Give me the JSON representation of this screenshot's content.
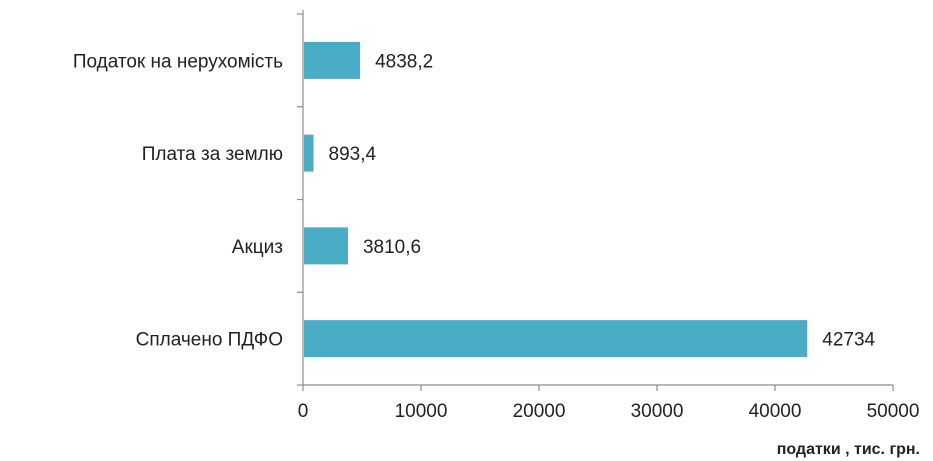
{
  "chart_data": {
    "type": "bar",
    "orientation": "horizontal",
    "categories": [
      "Податок на нерухомість",
      "Плата за землю",
      "Акциз",
      "Сплачено ПДФО"
    ],
    "values": [
      4838.2,
      893.4,
      3810.6,
      42734
    ],
    "data_labels": [
      "4838,2",
      "893,4",
      "3810,6",
      "42734"
    ],
    "xlim": [
      0,
      50000
    ],
    "x_ticks": [
      0,
      10000,
      20000,
      30000,
      40000,
      50000
    ],
    "x_tick_labels": [
      "0",
      "10000",
      "20000",
      "30000",
      "40000",
      "50000"
    ],
    "xlabel": "податки , тис. грн.",
    "ylabel": "",
    "title": "",
    "grid": false,
    "legend": "none",
    "bar_color": "#4bacc6"
  }
}
